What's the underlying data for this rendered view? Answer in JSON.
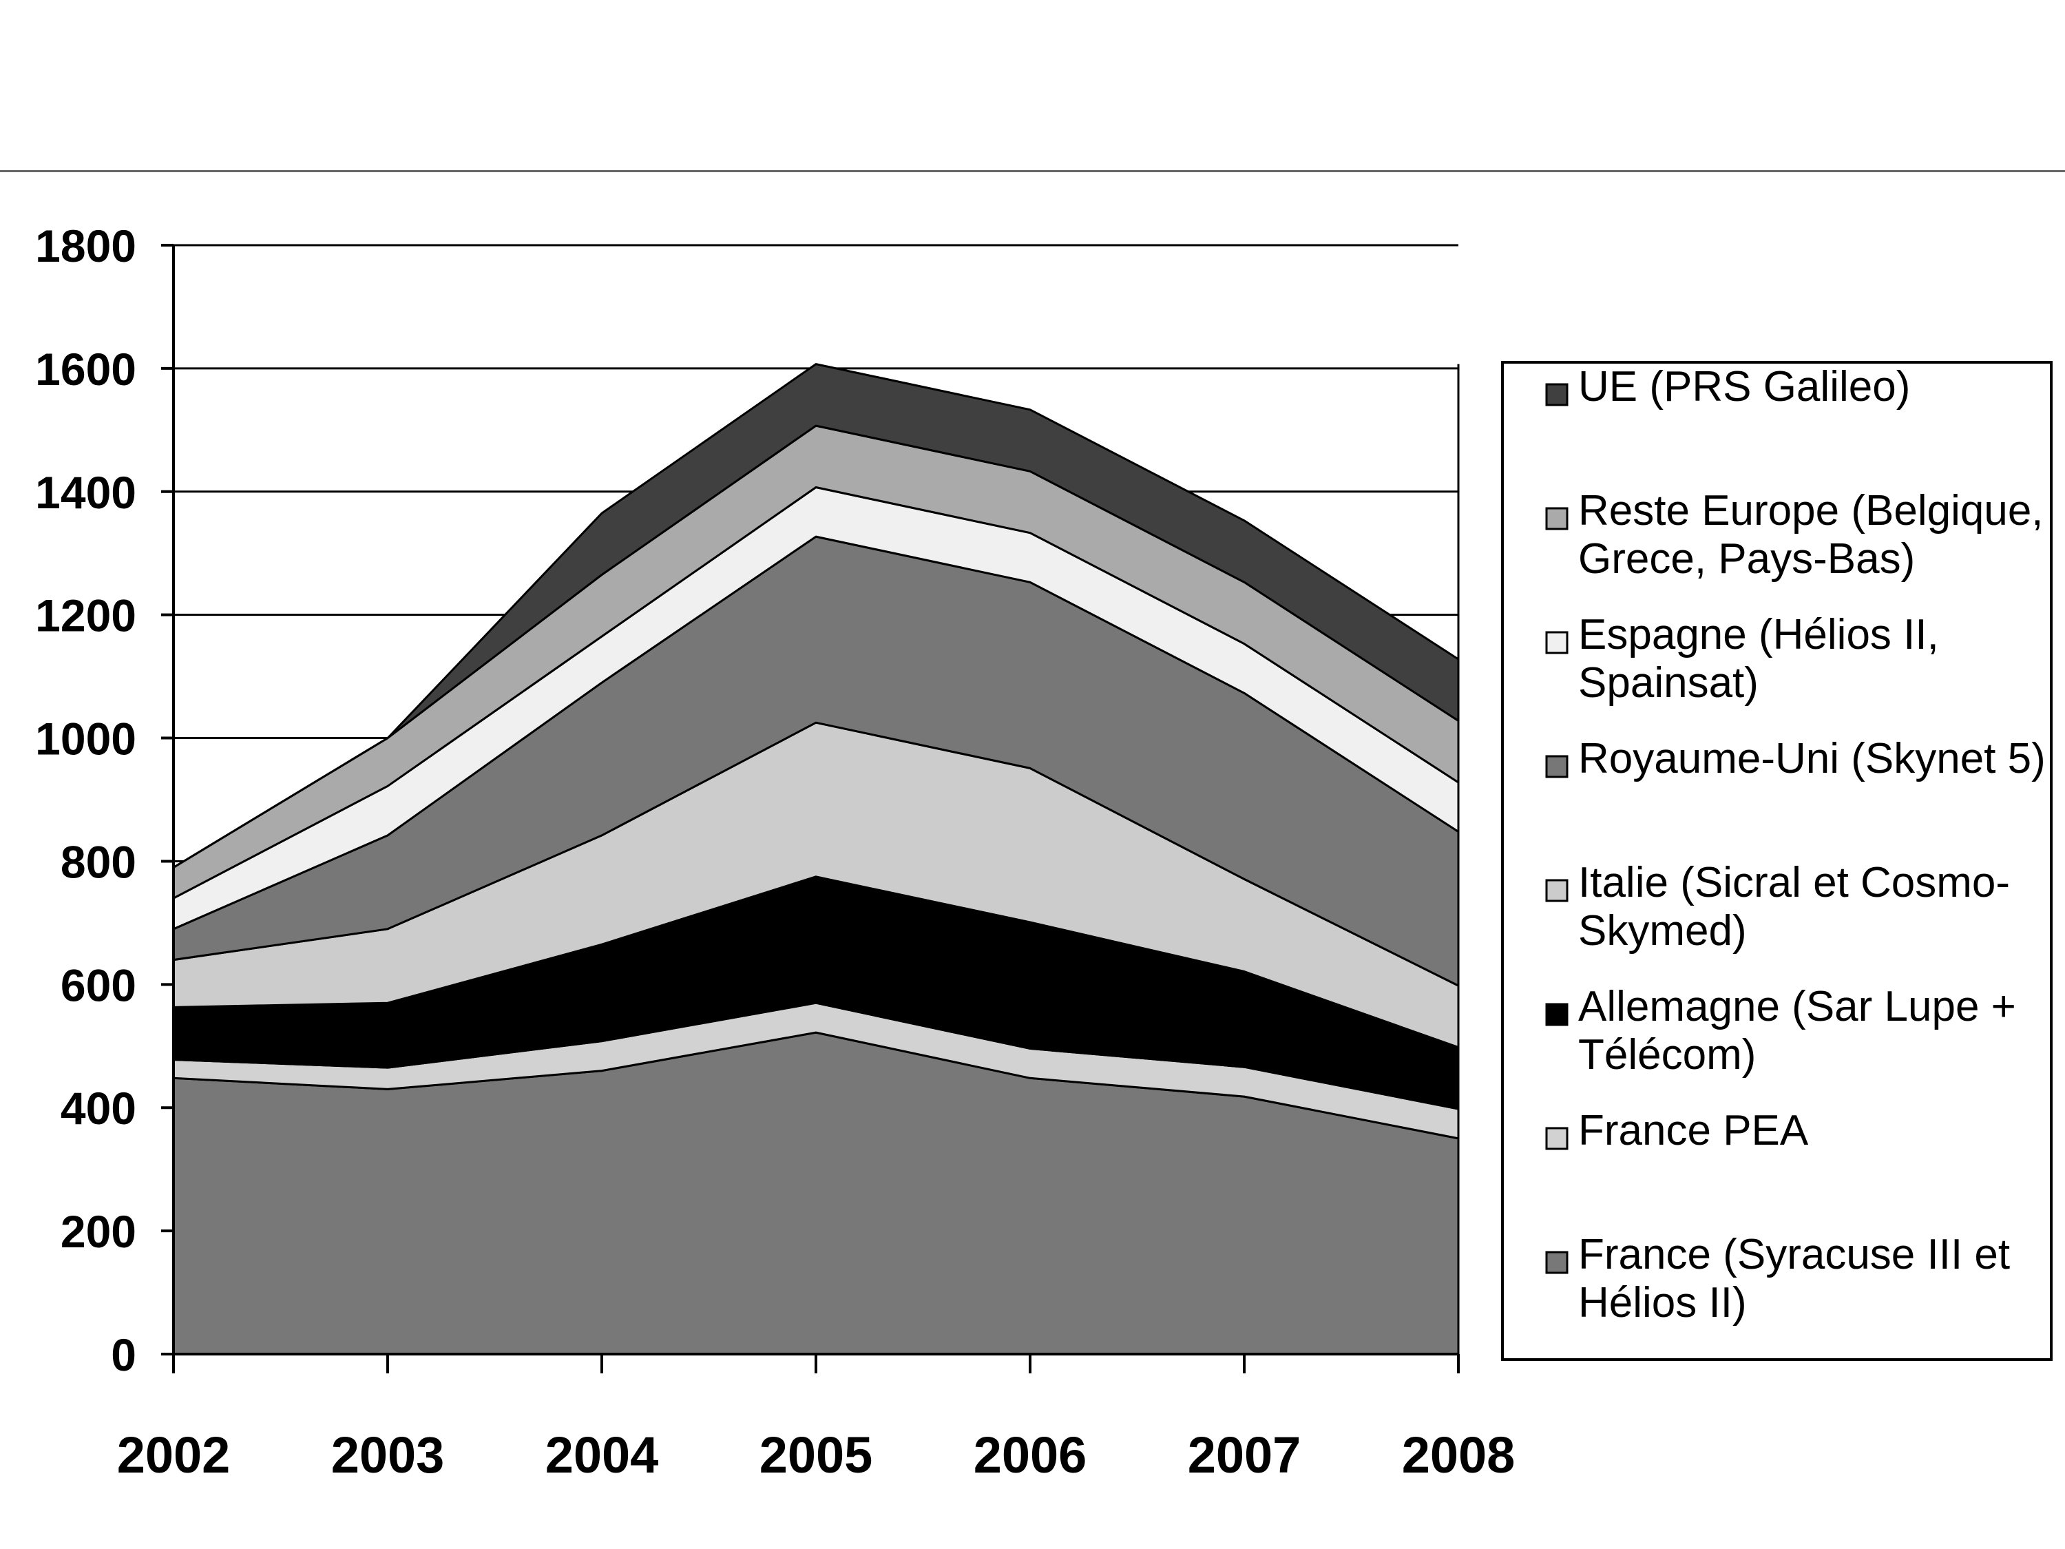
{
  "chart_data": {
    "type": "area",
    "stacked": true,
    "title": "",
    "xlabel": "",
    "ylabel": "",
    "x": [
      "2002",
      "2003",
      "2004",
      "2005",
      "2006",
      "2007",
      "2008"
    ],
    "ylim": [
      0,
      1800
    ],
    "yticks": [
      "0",
      "200",
      "400",
      "600",
      "800",
      "1000",
      "1200",
      "1400",
      "1600",
      "1800"
    ],
    "grid": true,
    "legend_position": "right",
    "series": [
      {
        "name": "France (Syracuse III et Hélios II)",
        "legend_lines": [
          "France (Syracuse III et",
          "Hélios II)"
        ],
        "color": "#787878",
        "values": [
          448,
          430,
          460,
          522,
          448,
          418,
          350
        ]
      },
      {
        "name": "France PEA",
        "legend_lines": [
          "France PEA"
        ],
        "color": "#d2d2d2",
        "values": [
          30,
          35,
          48,
          48,
          48,
          48,
          48
        ]
      },
      {
        "name": "Allemagne (Sar Lupe + Télécom)",
        "legend_lines": [
          "Allemagne (Sar Lupe +",
          "Télécom)"
        ],
        "color": "#000000",
        "values": [
          85,
          105,
          157,
          205,
          205,
          155,
          100
        ]
      },
      {
        "name": "Italie (Sicral et Cosmo-Skymed)",
        "legend_lines": [
          "Italie (Sicral et Cosmo-",
          "Skymed)"
        ],
        "color": "#cccccc",
        "values": [
          77,
          120,
          177,
          250,
          250,
          150,
          100
        ]
      },
      {
        "name": "Royaume-Uni (Skynet 5)",
        "legend_lines": [
          "Royaume-Uni (Skynet 5)"
        ],
        "color": "#777777",
        "values": [
          50,
          152,
          248,
          302,
          302,
          302,
          250
        ]
      },
      {
        "name": "Espagne (Hélios II, Spainsat)",
        "legend_lines": [
          "Espagne (Hélios II,",
          "Spainsat)"
        ],
        "color": "#f0f0f0",
        "values": [
          50,
          80,
          75,
          80,
          80,
          80,
          80
        ]
      },
      {
        "name": "Reste Europe (Belgique, Grece, Pays-Bas)",
        "legend_lines": [
          "Reste Europe (Belgique,",
          "Grece, Pays-Bas)"
        ],
        "color": "#aaaaaa",
        "values": [
          50,
          78,
          100,
          100,
          100,
          100,
          100
        ]
      },
      {
        "name": "UE (PRS Galileo)",
        "legend_lines": [
          "UE (PRS Galileo)"
        ],
        "color": "#404040",
        "values": [
          0,
          0,
          100,
          100,
          100,
          100,
          100
        ]
      }
    ]
  }
}
